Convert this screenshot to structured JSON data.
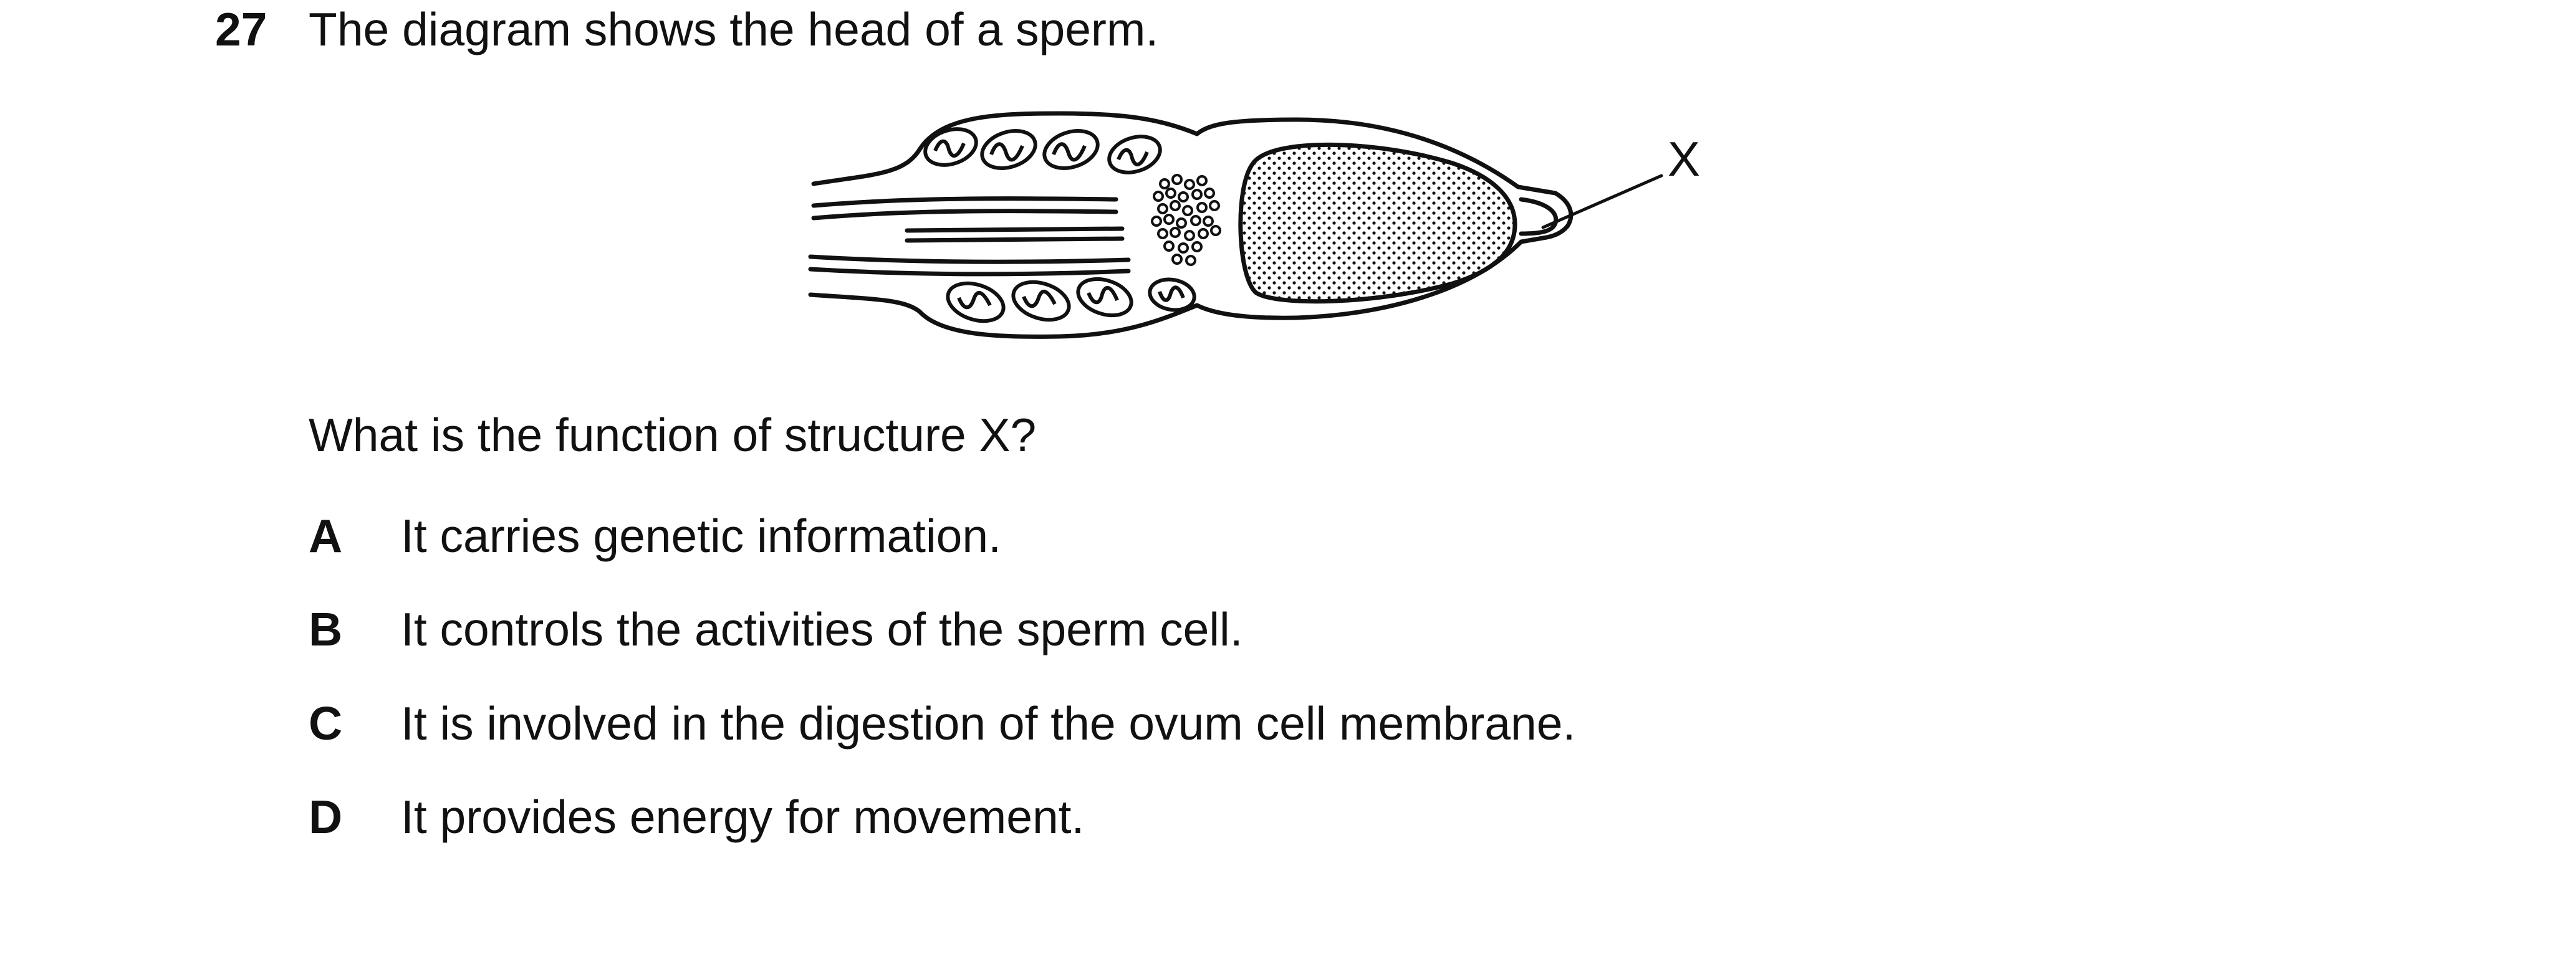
{
  "question": {
    "number": "27",
    "stem": "The diagram shows the head of a sperm.",
    "prompt": "What is the function of structure X?"
  },
  "diagram": {
    "label_x": "X"
  },
  "options": [
    {
      "letter": "A",
      "text": "It carries genetic information."
    },
    {
      "letter": "B",
      "text": "It controls the activities of the sperm cell."
    },
    {
      "letter": "C",
      "text": "It is involved in the digestion of the ovum cell membrane."
    },
    {
      "letter": "D",
      "text": "It provides energy for movement."
    }
  ]
}
